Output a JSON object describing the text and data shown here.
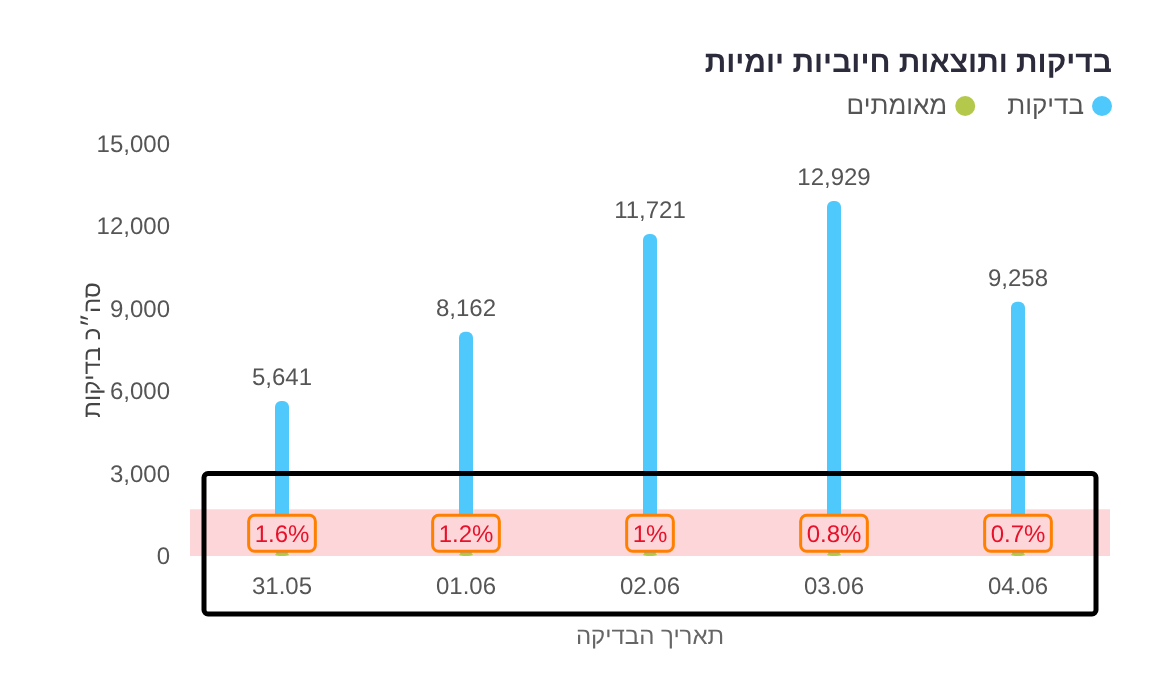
{
  "chart_data": {
    "type": "bar",
    "title": "בדיקות ותוצאות חיוביות יומיות",
    "xlabel": "תאריך הבדיקה",
    "ylabel": "סה״כ בדיקות",
    "categories": [
      "31.05",
      "01.06",
      "02.06",
      "03.06",
      "04.06"
    ],
    "series": [
      {
        "name": "בדיקות",
        "color": "#4fc8fb",
        "values": [
          5641,
          8162,
          11721,
          12929,
          9258
        ],
        "value_labels": [
          "5,641",
          "8,162",
          "11,721",
          "12,929",
          "9,258"
        ]
      },
      {
        "name": "מאומתים",
        "color": "#b4c94b",
        "values": [
          100,
          100,
          100,
          100,
          100
        ]
      }
    ],
    "annotations": [
      {
        "text": "1.6%",
        "x": "31.05",
        "y": 100
      },
      {
        "text": "1.2%",
        "x": "01.06",
        "y": 100
      },
      {
        "text": "1%",
        "x": "02.06",
        "y": 100
      },
      {
        "text": "0.8%",
        "x": "03.06",
        "y": 100
      },
      {
        "text": "0.7%",
        "x": "04.06",
        "y": 100
      }
    ],
    "ylim": [
      0,
      15000
    ],
    "yticks": [
      0,
      {
        "value": 3000,
        "label": "3,000"
      },
      {
        "value": 6000,
        "label": "6,000"
      },
      {
        "value": 9000,
        "label": "9,000"
      },
      {
        "value": 12000,
        "label": "12,000"
      },
      {
        "value": 15000,
        "label": "15,000"
      }
    ],
    "bands": [
      {
        "axis": "y",
        "from": 0,
        "to": 1700,
        "color": "#fcd6d8"
      }
    ],
    "legend": "top right",
    "grid": false
  }
}
